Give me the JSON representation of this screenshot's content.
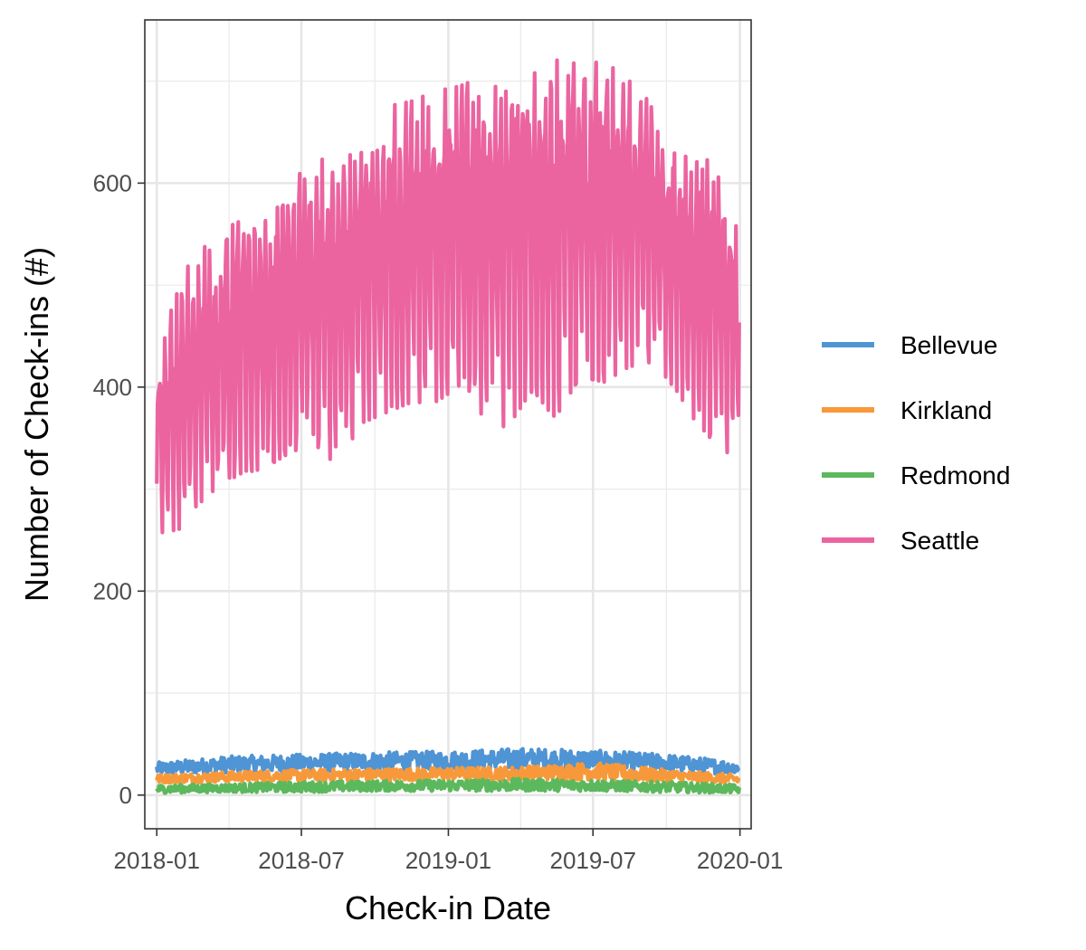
{
  "chart_data": {
    "type": "line",
    "title": "",
    "xlabel": "Check-in Date",
    "ylabel": "Number of Check-ins (#)",
    "x_range": [
      "2017-12-17",
      "2020-01-15"
    ],
    "ylim": [
      -33,
      760
    ],
    "x_ticks": [
      {
        "date": "2018-01-01",
        "label": "2018-01"
      },
      {
        "date": "2018-07-01",
        "label": "2018-07"
      },
      {
        "date": "2019-01-01",
        "label": "2019-01"
      },
      {
        "date": "2019-07-01",
        "label": "2019-07"
      },
      {
        "date": "2020-01-01",
        "label": "2020-01"
      }
    ],
    "y_ticks": [
      0,
      200,
      400,
      600
    ],
    "grid": true,
    "legend_position": "right",
    "series": [
      {
        "name": "Bellevue",
        "color": "#4f94d4",
        "points": [
          {
            "date": "2018-01-01",
            "low": 20,
            "high": 32
          },
          {
            "date": "2018-04-01",
            "low": 22,
            "high": 38
          },
          {
            "date": "2018-07-01",
            "low": 23,
            "high": 40
          },
          {
            "date": "2018-10-01",
            "low": 24,
            "high": 42
          },
          {
            "date": "2019-01-01",
            "low": 25,
            "high": 43
          },
          {
            "date": "2019-04-01",
            "low": 25,
            "high": 46
          },
          {
            "date": "2019-07-01",
            "low": 25,
            "high": 44
          },
          {
            "date": "2019-10-01",
            "low": 23,
            "high": 40
          },
          {
            "date": "2019-12-31",
            "low": 20,
            "high": 33
          }
        ]
      },
      {
        "name": "Kirkland",
        "color": "#f7993a",
        "points": [
          {
            "date": "2018-01-01",
            "low": 12,
            "high": 20
          },
          {
            "date": "2018-04-01",
            "low": 13,
            "high": 23
          },
          {
            "date": "2018-07-01",
            "low": 14,
            "high": 25
          },
          {
            "date": "2018-10-01",
            "low": 14,
            "high": 26
          },
          {
            "date": "2019-01-01",
            "low": 15,
            "high": 27
          },
          {
            "date": "2019-04-01",
            "low": 15,
            "high": 28
          },
          {
            "date": "2019-07-01",
            "low": 15,
            "high": 32
          },
          {
            "date": "2019-10-01",
            "low": 13,
            "high": 25
          },
          {
            "date": "2019-12-31",
            "low": 11,
            "high": 20
          }
        ]
      },
      {
        "name": "Redmond",
        "color": "#5cb85c",
        "points": [
          {
            "date": "2018-01-01",
            "low": 2,
            "high": 10
          },
          {
            "date": "2018-04-01",
            "low": 3,
            "high": 11
          },
          {
            "date": "2018-07-01",
            "low": 3,
            "high": 13
          },
          {
            "date": "2018-10-01",
            "low": 4,
            "high": 14
          },
          {
            "date": "2019-01-01",
            "low": 4,
            "high": 15
          },
          {
            "date": "2019-04-01",
            "low": 4,
            "high": 16
          },
          {
            "date": "2019-07-01",
            "low": 4,
            "high": 15
          },
          {
            "date": "2019-10-01",
            "low": 3,
            "high": 13
          },
          {
            "date": "2019-12-31",
            "low": 2,
            "high": 10
          }
        ]
      },
      {
        "name": "Seattle",
        "color": "#eb64a0",
        "points": [
          {
            "date": "2018-01-01",
            "low": 270,
            "high": 440
          },
          {
            "date": "2018-01-15",
            "low": 245,
            "high": 470
          },
          {
            "date": "2018-02-15",
            "low": 280,
            "high": 530
          },
          {
            "date": "2018-03-15",
            "low": 300,
            "high": 545
          },
          {
            "date": "2018-04-15",
            "low": 315,
            "high": 565
          },
          {
            "date": "2018-05-15",
            "low": 320,
            "high": 570
          },
          {
            "date": "2018-06-15",
            "low": 335,
            "high": 590
          },
          {
            "date": "2018-07-15",
            "low": 340,
            "high": 635
          },
          {
            "date": "2018-08-15",
            "low": 325,
            "high": 625
          },
          {
            "date": "2018-09-15",
            "low": 365,
            "high": 630
          },
          {
            "date": "2018-10-15",
            "low": 375,
            "high": 675
          },
          {
            "date": "2018-11-15",
            "low": 385,
            "high": 680
          },
          {
            "date": "2018-12-15",
            "low": 385,
            "high": 690
          },
          {
            "date": "2019-01-15",
            "low": 400,
            "high": 695
          },
          {
            "date": "2019-02-15",
            "low": 370,
            "high": 705
          },
          {
            "date": "2019-03-15",
            "low": 360,
            "high": 720
          },
          {
            "date": "2019-04-15",
            "low": 395,
            "high": 710
          },
          {
            "date": "2019-05-15",
            "low": 370,
            "high": 725
          },
          {
            "date": "2019-06-15",
            "low": 410,
            "high": 715
          },
          {
            "date": "2019-07-15",
            "low": 405,
            "high": 720
          },
          {
            "date": "2019-08-15",
            "low": 420,
            "high": 700
          },
          {
            "date": "2019-09-15",
            "low": 425,
            "high": 690
          },
          {
            "date": "2019-10-15",
            "low": 395,
            "high": 640
          },
          {
            "date": "2019-11-15",
            "low": 355,
            "high": 640
          },
          {
            "date": "2019-12-15",
            "low": 335,
            "high": 600
          },
          {
            "date": "2019-12-31",
            "low": 350,
            "high": 555
          }
        ]
      }
    ]
  }
}
